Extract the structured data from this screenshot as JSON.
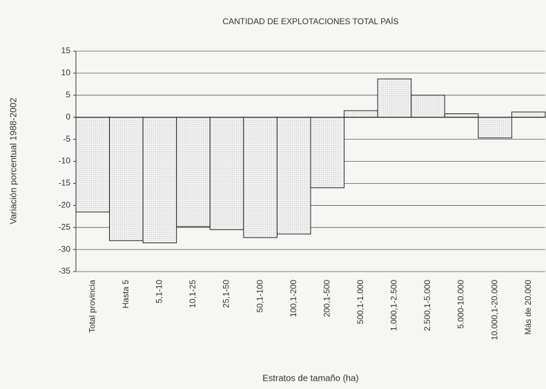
{
  "chart_data": {
    "type": "bar",
    "title": "CANTIDAD DE EXPLOTACIONES TOTAL PAÍS",
    "ylabel": "Variación porcentual 1988-2002",
    "xlabel": "Estratos de tamaño (ha)",
    "categories": [
      "Total provincia",
      "Hasta 5",
      "5,1-10",
      "10,1-25",
      "25,1-50",
      "50,1-100",
      "100,1-200",
      "200,1-500",
      "500,1-1.000",
      "1.000,1-2.500",
      "2.500,1-5.000",
      "5.000-10.000",
      "10.000,1-20.000",
      "Más de 20.000"
    ],
    "values": [
      -21.5,
      -28,
      -28.5,
      -24.8,
      -25.5,
      -27.3,
      -26.5,
      -16,
      1.5,
      8.7,
      5,
      0.8,
      -4.7,
      1.2
    ],
    "color": "#ececec",
    "ylim": [
      -35,
      15
    ],
    "yticks": [
      -35,
      -30,
      -25,
      -20,
      -15,
      -10,
      -5,
      0,
      5,
      10,
      15
    ],
    "grid": true
  }
}
